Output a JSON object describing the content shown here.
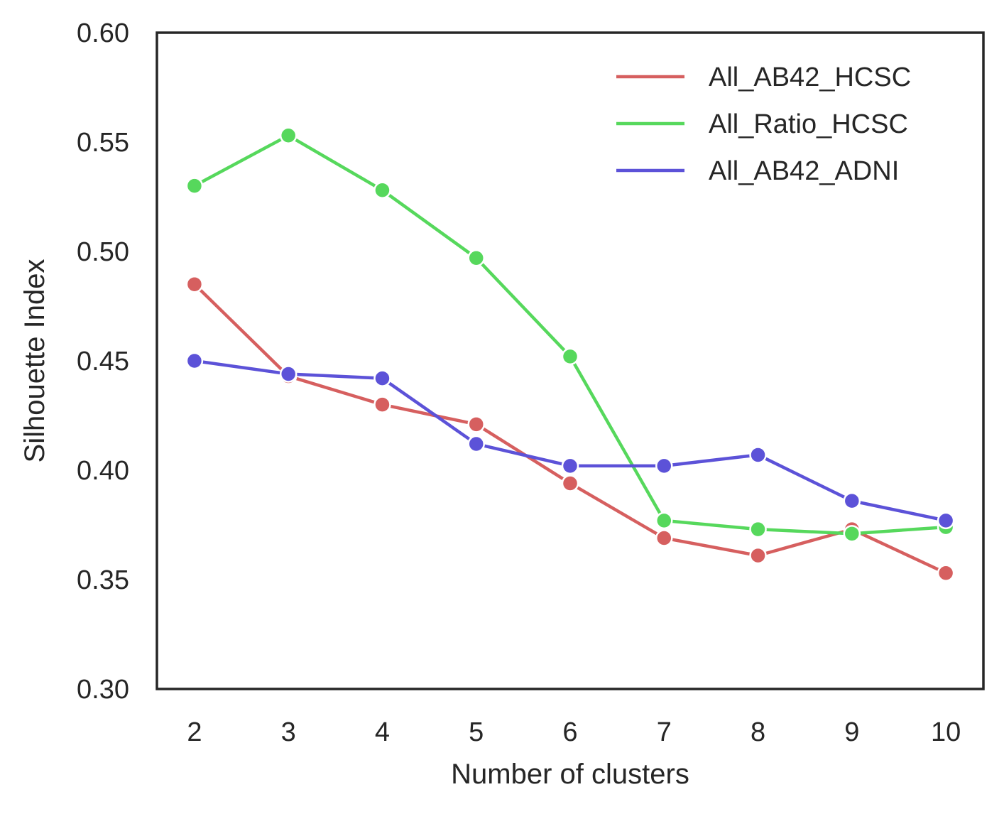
{
  "chart_data": {
    "type": "line",
    "x": [
      2,
      3,
      4,
      5,
      6,
      7,
      8,
      9,
      10
    ],
    "series": [
      {
        "name": "All_AB42_HCSC",
        "color": "#d65f5f",
        "values": [
          0.485,
          0.443,
          0.43,
          0.421,
          0.394,
          0.369,
          0.361,
          0.373,
          0.353
        ]
      },
      {
        "name": "All_Ratio_HCSC",
        "color": "#56d85c",
        "values": [
          0.53,
          0.553,
          0.528,
          0.497,
          0.452,
          0.377,
          0.373,
          0.371,
          0.374
        ]
      },
      {
        "name": "All_AB42_ADNI",
        "color": "#5c52d8",
        "values": [
          0.45,
          0.444,
          0.442,
          0.412,
          0.402,
          0.402,
          0.407,
          0.386,
          0.377
        ]
      }
    ],
    "xticks": [
      "2",
      "3",
      "4",
      "5",
      "6",
      "7",
      "8",
      "9",
      "10"
    ],
    "yticks": [
      "0.30",
      "0.35",
      "0.40",
      "0.45",
      "0.50",
      "0.55",
      "0.60"
    ],
    "xlabel": "Number of clusters",
    "ylabel": "Silhouette Index",
    "xlim": [
      1.6,
      10.4
    ],
    "ylim": [
      0.3,
      0.6
    ],
    "grid": false,
    "legend_position": "top-right",
    "markers": true
  }
}
